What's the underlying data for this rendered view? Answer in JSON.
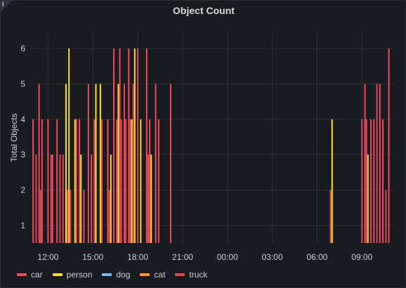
{
  "panel": {
    "title": "Object Count",
    "info_icon": "info-icon"
  },
  "colors": {
    "car": "#f2495c",
    "person": "#fade2a",
    "dog": "#73bff2",
    "cat": "#ff9830",
    "truck": "#e0485a"
  },
  "chart_data": {
    "type": "bar",
    "title": "Object Count",
    "ylabel": "Total Objects",
    "xlabel": "",
    "ylim": [
      0.5,
      6.5
    ],
    "y_ticks": [
      1,
      2,
      3,
      4,
      5,
      6
    ],
    "x_tick_labels": [
      "12:00",
      "15:00",
      "18:00",
      "21:00",
      "00:00",
      "03:00",
      "06:00",
      "09:00"
    ],
    "x_tick_hours": [
      12,
      15,
      18,
      21,
      24,
      27,
      30,
      33
    ],
    "xlim_hours": [
      10.9,
      35.1
    ],
    "grid": true,
    "legend": "bottom-left",
    "series": [
      {
        "name": "car",
        "bars": [
          [
            11.0,
            4
          ],
          [
            11.4,
            5
          ],
          [
            11.6,
            4
          ],
          [
            12.0,
            4
          ],
          [
            12.3,
            3
          ],
          [
            12.6,
            4
          ],
          [
            13.3,
            2
          ],
          [
            13.9,
            4
          ],
          [
            14.1,
            4
          ],
          [
            14.4,
            2
          ],
          [
            14.7,
            5
          ],
          [
            15.1,
            4
          ],
          [
            15.6,
            4
          ],
          [
            16.0,
            4
          ],
          [
            16.4,
            6
          ],
          [
            16.6,
            4
          ],
          [
            16.8,
            6
          ],
          [
            17.4,
            6
          ],
          [
            18.6,
            6
          ],
          [
            18.8,
            4
          ],
          [
            19.2,
            5
          ],
          [
            19.4,
            4
          ],
          [
            20.2,
            5
          ],
          [
            30.9,
            2
          ],
          [
            33.2,
            5
          ],
          [
            33.6,
            4
          ],
          [
            33.8,
            4
          ],
          [
            34.2,
            5
          ],
          [
            34.4,
            4
          ],
          [
            34.8,
            6
          ]
        ]
      },
      {
        "name": "person",
        "bars": [
          [
            13.2,
            5
          ],
          [
            13.4,
            6
          ],
          [
            13.8,
            4
          ],
          [
            14.2,
            3
          ],
          [
            15.2,
            5
          ],
          [
            15.5,
            5
          ],
          [
            16.2,
            3
          ],
          [
            16.7,
            5
          ],
          [
            17.6,
            4
          ],
          [
            17.8,
            6
          ],
          [
            18.2,
            4
          ],
          [
            18.9,
            3
          ],
          [
            31.0,
            4
          ],
          [
            33.4,
            3
          ]
        ]
      },
      {
        "name": "dog",
        "bars": []
      },
      {
        "name": "cat",
        "bars": []
      },
      {
        "name": "truck",
        "bars": [
          [
            11.2,
            3
          ],
          [
            11.5,
            2
          ],
          [
            12.2,
            3
          ],
          [
            12.8,
            3
          ],
          [
            13.0,
            3
          ],
          [
            13.5,
            2
          ],
          [
            14.9,
            3
          ],
          [
            16.1,
            2
          ],
          [
            16.9,
            4
          ],
          [
            17.1,
            5
          ],
          [
            17.2,
            4
          ],
          [
            17.5,
            4
          ],
          [
            17.7,
            5
          ],
          [
            18.0,
            6
          ],
          [
            18.7,
            3
          ],
          [
            33.0,
            4
          ],
          [
            33.3,
            4
          ],
          [
            34.0,
            5
          ],
          [
            34.6,
            2
          ]
        ]
      }
    ]
  },
  "legend_items": [
    "car",
    "person",
    "dog",
    "cat",
    "truck"
  ]
}
